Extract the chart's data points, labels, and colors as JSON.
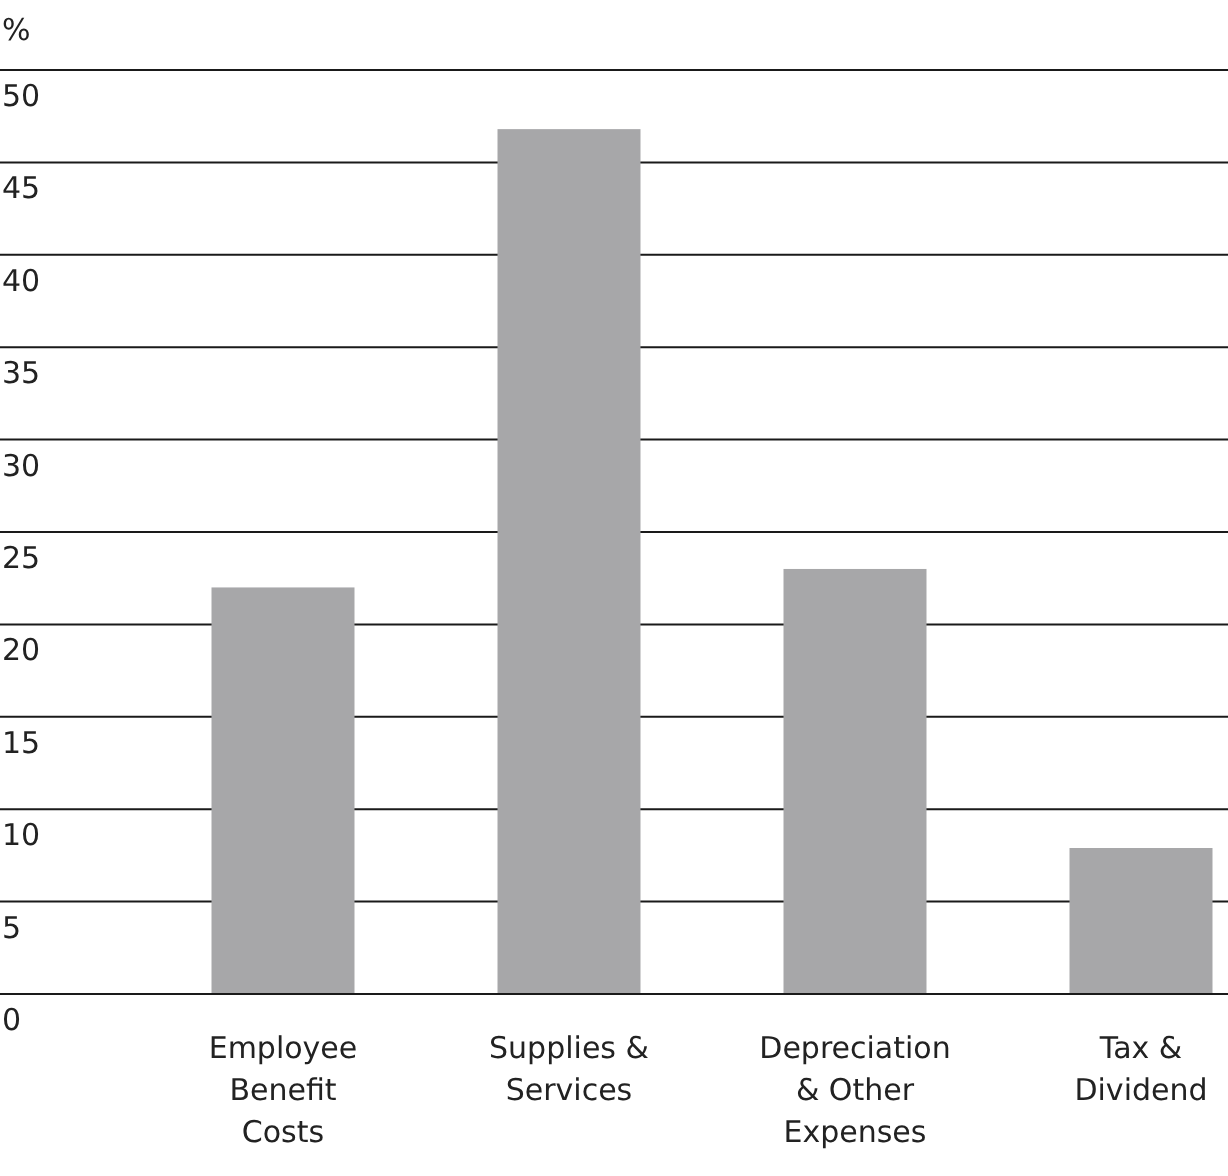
{
  "chart_data": {
    "type": "bar",
    "ylabel": "%",
    "categories": [
      "Employee Benefit Costs",
      "Supplies & Services",
      "Depreciation & Other Expenses",
      "Tax & Dividend"
    ],
    "values": [
      22,
      46.8,
      23,
      7.9
    ],
    "color": "#a7a7a9",
    "ylim": [
      0,
      50
    ],
    "yticks": [
      0,
      5,
      10,
      15,
      20,
      25,
      30,
      35,
      40,
      45,
      50
    ],
    "grid": "y"
  }
}
